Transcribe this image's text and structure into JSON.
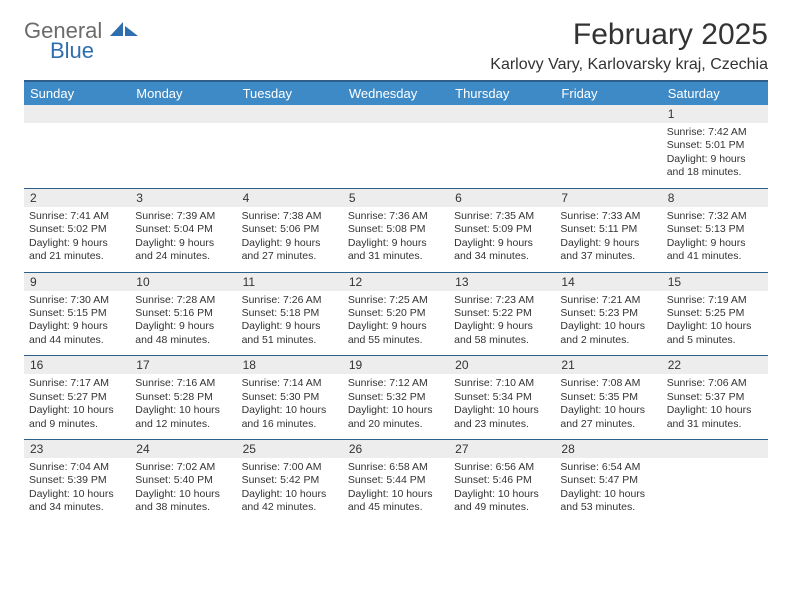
{
  "brand": {
    "word1": "General",
    "word2": "Blue"
  },
  "title": "February 2025",
  "location": "Karlovy Vary, Karlovarsky kraj, Czechia",
  "colors": {
    "header_band": "#3e8ac6",
    "rule": "#2e5e8a",
    "day_band": "#ededed",
    "text": "#333333",
    "logo_gray": "#6b6b6b",
    "logo_blue": "#2f6fb0",
    "background": "#ffffff"
  },
  "typography": {
    "title_fontsize": 30,
    "location_fontsize": 16,
    "weekday_fontsize": 13,
    "daynum_fontsize": 12,
    "body_fontsize": 10.5
  },
  "weekdays": [
    "Sunday",
    "Monday",
    "Tuesday",
    "Wednesday",
    "Thursday",
    "Friday",
    "Saturday"
  ],
  "weeks": [
    [
      {
        "n": "",
        "s": "",
        "t": "",
        "d": ""
      },
      {
        "n": "",
        "s": "",
        "t": "",
        "d": ""
      },
      {
        "n": "",
        "s": "",
        "t": "",
        "d": ""
      },
      {
        "n": "",
        "s": "",
        "t": "",
        "d": ""
      },
      {
        "n": "",
        "s": "",
        "t": "",
        "d": ""
      },
      {
        "n": "",
        "s": "",
        "t": "",
        "d": ""
      },
      {
        "n": "1",
        "s": "Sunrise: 7:42 AM",
        "t": "Sunset: 5:01 PM",
        "d": "Daylight: 9 hours and 18 minutes."
      }
    ],
    [
      {
        "n": "2",
        "s": "Sunrise: 7:41 AM",
        "t": "Sunset: 5:02 PM",
        "d": "Daylight: 9 hours and 21 minutes."
      },
      {
        "n": "3",
        "s": "Sunrise: 7:39 AM",
        "t": "Sunset: 5:04 PM",
        "d": "Daylight: 9 hours and 24 minutes."
      },
      {
        "n": "4",
        "s": "Sunrise: 7:38 AM",
        "t": "Sunset: 5:06 PM",
        "d": "Daylight: 9 hours and 27 minutes."
      },
      {
        "n": "5",
        "s": "Sunrise: 7:36 AM",
        "t": "Sunset: 5:08 PM",
        "d": "Daylight: 9 hours and 31 minutes."
      },
      {
        "n": "6",
        "s": "Sunrise: 7:35 AM",
        "t": "Sunset: 5:09 PM",
        "d": "Daylight: 9 hours and 34 minutes."
      },
      {
        "n": "7",
        "s": "Sunrise: 7:33 AM",
        "t": "Sunset: 5:11 PM",
        "d": "Daylight: 9 hours and 37 minutes."
      },
      {
        "n": "8",
        "s": "Sunrise: 7:32 AM",
        "t": "Sunset: 5:13 PM",
        "d": "Daylight: 9 hours and 41 minutes."
      }
    ],
    [
      {
        "n": "9",
        "s": "Sunrise: 7:30 AM",
        "t": "Sunset: 5:15 PM",
        "d": "Daylight: 9 hours and 44 minutes."
      },
      {
        "n": "10",
        "s": "Sunrise: 7:28 AM",
        "t": "Sunset: 5:16 PM",
        "d": "Daylight: 9 hours and 48 minutes."
      },
      {
        "n": "11",
        "s": "Sunrise: 7:26 AM",
        "t": "Sunset: 5:18 PM",
        "d": "Daylight: 9 hours and 51 minutes."
      },
      {
        "n": "12",
        "s": "Sunrise: 7:25 AM",
        "t": "Sunset: 5:20 PM",
        "d": "Daylight: 9 hours and 55 minutes."
      },
      {
        "n": "13",
        "s": "Sunrise: 7:23 AM",
        "t": "Sunset: 5:22 PM",
        "d": "Daylight: 9 hours and 58 minutes."
      },
      {
        "n": "14",
        "s": "Sunrise: 7:21 AM",
        "t": "Sunset: 5:23 PM",
        "d": "Daylight: 10 hours and 2 minutes."
      },
      {
        "n": "15",
        "s": "Sunrise: 7:19 AM",
        "t": "Sunset: 5:25 PM",
        "d": "Daylight: 10 hours and 5 minutes."
      }
    ],
    [
      {
        "n": "16",
        "s": "Sunrise: 7:17 AM",
        "t": "Sunset: 5:27 PM",
        "d": "Daylight: 10 hours and 9 minutes."
      },
      {
        "n": "17",
        "s": "Sunrise: 7:16 AM",
        "t": "Sunset: 5:28 PM",
        "d": "Daylight: 10 hours and 12 minutes."
      },
      {
        "n": "18",
        "s": "Sunrise: 7:14 AM",
        "t": "Sunset: 5:30 PM",
        "d": "Daylight: 10 hours and 16 minutes."
      },
      {
        "n": "19",
        "s": "Sunrise: 7:12 AM",
        "t": "Sunset: 5:32 PM",
        "d": "Daylight: 10 hours and 20 minutes."
      },
      {
        "n": "20",
        "s": "Sunrise: 7:10 AM",
        "t": "Sunset: 5:34 PM",
        "d": "Daylight: 10 hours and 23 minutes."
      },
      {
        "n": "21",
        "s": "Sunrise: 7:08 AM",
        "t": "Sunset: 5:35 PM",
        "d": "Daylight: 10 hours and 27 minutes."
      },
      {
        "n": "22",
        "s": "Sunrise: 7:06 AM",
        "t": "Sunset: 5:37 PM",
        "d": "Daylight: 10 hours and 31 minutes."
      }
    ],
    [
      {
        "n": "23",
        "s": "Sunrise: 7:04 AM",
        "t": "Sunset: 5:39 PM",
        "d": "Daylight: 10 hours and 34 minutes."
      },
      {
        "n": "24",
        "s": "Sunrise: 7:02 AM",
        "t": "Sunset: 5:40 PM",
        "d": "Daylight: 10 hours and 38 minutes."
      },
      {
        "n": "25",
        "s": "Sunrise: 7:00 AM",
        "t": "Sunset: 5:42 PM",
        "d": "Daylight: 10 hours and 42 minutes."
      },
      {
        "n": "26",
        "s": "Sunrise: 6:58 AM",
        "t": "Sunset: 5:44 PM",
        "d": "Daylight: 10 hours and 45 minutes."
      },
      {
        "n": "27",
        "s": "Sunrise: 6:56 AM",
        "t": "Sunset: 5:46 PM",
        "d": "Daylight: 10 hours and 49 minutes."
      },
      {
        "n": "28",
        "s": "Sunrise: 6:54 AM",
        "t": "Sunset: 5:47 PM",
        "d": "Daylight: 10 hours and 53 minutes."
      },
      {
        "n": "",
        "s": "",
        "t": "",
        "d": ""
      }
    ]
  ]
}
